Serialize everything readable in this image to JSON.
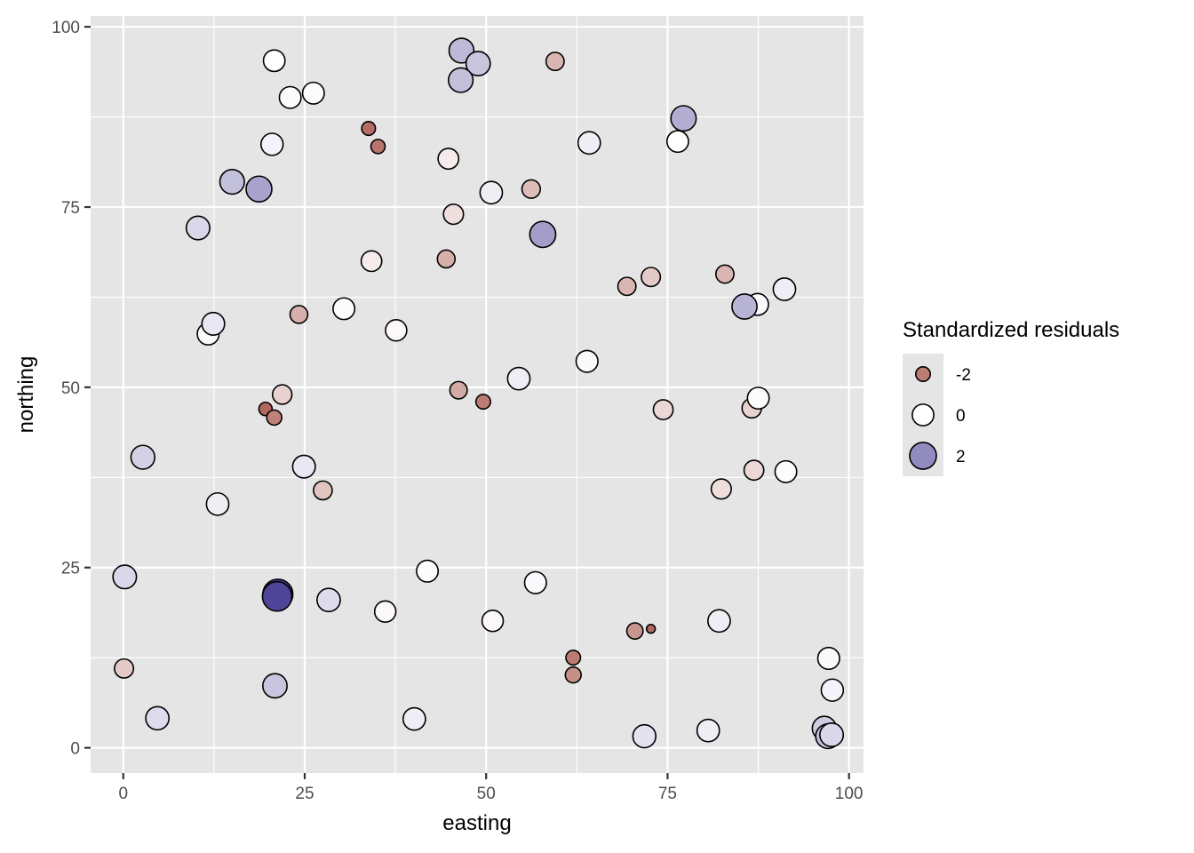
{
  "chart_data": {
    "type": "scatter",
    "xlabel": "easting",
    "ylabel": "northing",
    "xlim": [
      -4.5,
      102
    ],
    "ylim": [
      -3.5,
      101.5
    ],
    "x_ticks": [
      0,
      25,
      50,
      75,
      100
    ],
    "y_ticks": [
      0,
      25,
      50,
      75,
      100
    ],
    "x_tick_labels": [
      "0",
      "25",
      "50",
      "75",
      "100"
    ],
    "y_tick_labels": [
      "0",
      "25",
      "50",
      "75",
      "100"
    ],
    "grid": true,
    "panel_background": "#e5e5e5",
    "grid_color": "#ffffff",
    "legend": {
      "title": "Standardized residuals",
      "placement": "right",
      "entries": [
        {
          "label": "-2",
          "value": -2
        },
        {
          "label": "0",
          "value": 0
        },
        {
          "label": "2",
          "value": 2
        }
      ]
    },
    "color_scale": {
      "type": "diverging",
      "low": "#b2675e",
      "mid": "#ffffff",
      "high": "#3f358f",
      "midpoint": 0,
      "limits": [
        -3.2,
        3.6
      ]
    },
    "points": [
      {
        "x": 20.8,
        "y": 95.3,
        "residual": 0.0
      },
      {
        "x": 23.0,
        "y": 90.2,
        "residual": 0.05
      },
      {
        "x": 26.2,
        "y": 90.8,
        "residual": 0.05
      },
      {
        "x": 46.6,
        "y": 96.7,
        "residual": 1.2
      },
      {
        "x": 48.9,
        "y": 94.9,
        "residual": 1.0
      },
      {
        "x": 46.5,
        "y": 92.6,
        "residual": 1.1
      },
      {
        "x": 59.5,
        "y": 95.2,
        "residual": -1.1
      },
      {
        "x": 33.8,
        "y": 85.9,
        "residual": -2.2
      },
      {
        "x": 35.1,
        "y": 83.4,
        "residual": -2.1
      },
      {
        "x": 20.5,
        "y": 83.7,
        "residual": 0.2
      },
      {
        "x": 44.8,
        "y": 81.7,
        "residual": -0.3
      },
      {
        "x": 64.2,
        "y": 83.9,
        "residual": 0.3
      },
      {
        "x": 76.4,
        "y": 84.1,
        "residual": 0.0
      },
      {
        "x": 77.2,
        "y": 87.3,
        "residual": 1.4
      },
      {
        "x": 15.0,
        "y": 78.5,
        "residual": 1.1
      },
      {
        "x": 18.7,
        "y": 77.5,
        "residual": 1.6
      },
      {
        "x": 50.7,
        "y": 77.0,
        "residual": 0.3
      },
      {
        "x": 56.2,
        "y": 77.5,
        "residual": -1.0
      },
      {
        "x": 45.5,
        "y": 74.0,
        "residual": -0.5
      },
      {
        "x": 10.3,
        "y": 72.1,
        "residual": 0.7
      },
      {
        "x": 57.8,
        "y": 71.2,
        "residual": 1.7
      },
      {
        "x": 34.2,
        "y": 67.5,
        "residual": -0.3
      },
      {
        "x": 44.5,
        "y": 67.8,
        "residual": -1.2
      },
      {
        "x": 69.4,
        "y": 64.0,
        "residual": -1.1
      },
      {
        "x": 72.7,
        "y": 65.3,
        "residual": -0.8
      },
      {
        "x": 82.9,
        "y": 65.7,
        "residual": -1.1
      },
      {
        "x": 91.1,
        "y": 63.6,
        "residual": 0.3
      },
      {
        "x": 87.4,
        "y": 61.5,
        "residual": 0.1
      },
      {
        "x": 85.6,
        "y": 61.2,
        "residual": 1.3
      },
      {
        "x": 24.2,
        "y": 60.1,
        "residual": -1.2
      },
      {
        "x": 30.4,
        "y": 60.9,
        "residual": 0.05
      },
      {
        "x": 37.6,
        "y": 57.9,
        "residual": -0.1
      },
      {
        "x": 11.7,
        "y": 57.4,
        "residual": 0.1
      },
      {
        "x": 12.4,
        "y": 58.8,
        "residual": 0.4
      },
      {
        "x": 63.9,
        "y": 53.6,
        "residual": 0.1
      },
      {
        "x": 54.5,
        "y": 51.2,
        "residual": 0.3
      },
      {
        "x": 21.9,
        "y": 49.0,
        "residual": -0.7
      },
      {
        "x": 46.2,
        "y": 49.6,
        "residual": -1.3
      },
      {
        "x": 49.6,
        "y": 48.0,
        "residual": -2.0
      },
      {
        "x": 19.6,
        "y": 47.0,
        "residual": -2.3
      },
      {
        "x": 20.8,
        "y": 45.8,
        "residual": -1.9
      },
      {
        "x": 74.4,
        "y": 46.9,
        "residual": -0.6
      },
      {
        "x": 86.6,
        "y": 47.1,
        "residual": -0.7
      },
      {
        "x": 87.5,
        "y": 48.5,
        "residual": 0.05
      },
      {
        "x": 2.7,
        "y": 40.3,
        "residual": 0.8
      },
      {
        "x": 24.9,
        "y": 39.0,
        "residual": 0.4
      },
      {
        "x": 27.5,
        "y": 35.7,
        "residual": -0.9
      },
      {
        "x": 86.9,
        "y": 38.5,
        "residual": -0.6
      },
      {
        "x": 91.3,
        "y": 38.3,
        "residual": 0.05
      },
      {
        "x": 82.4,
        "y": 35.9,
        "residual": -0.5
      },
      {
        "x": 13.0,
        "y": 33.8,
        "residual": 0.3
      },
      {
        "x": 0.2,
        "y": 23.7,
        "residual": 0.7
      },
      {
        "x": 41.9,
        "y": 24.5,
        "residual": 0.05
      },
      {
        "x": 56.8,
        "y": 22.9,
        "residual": 0.1
      },
      {
        "x": 21.3,
        "y": 21.3,
        "residual": 3.5
      },
      {
        "x": 21.2,
        "y": 21.0,
        "residual": 3.2
      },
      {
        "x": 28.3,
        "y": 20.5,
        "residual": 0.6
      },
      {
        "x": 36.1,
        "y": 18.9,
        "residual": -0.1
      },
      {
        "x": 50.9,
        "y": 17.6,
        "residual": -0.1
      },
      {
        "x": 82.1,
        "y": 17.6,
        "residual": 0.3
      },
      {
        "x": 70.5,
        "y": 16.2,
        "residual": -1.6
      },
      {
        "x": 72.7,
        "y": 16.5,
        "residual": -3.1
      },
      {
        "x": 62.0,
        "y": 12.5,
        "residual": -2.0
      },
      {
        "x": 62.0,
        "y": 10.1,
        "residual": -1.7
      },
      {
        "x": 0.1,
        "y": 11.0,
        "residual": -0.8
      },
      {
        "x": 97.2,
        "y": 12.4,
        "residual": 0.1
      },
      {
        "x": 97.7,
        "y": 8.0,
        "residual": 0.2
      },
      {
        "x": 20.9,
        "y": 8.6,
        "residual": 1.0
      },
      {
        "x": 4.7,
        "y": 4.1,
        "residual": 0.6
      },
      {
        "x": 40.1,
        "y": 4.0,
        "residual": 0.3
      },
      {
        "x": 71.8,
        "y": 1.6,
        "residual": 0.5
      },
      {
        "x": 80.6,
        "y": 2.4,
        "residual": 0.3
      },
      {
        "x": 96.6,
        "y": 2.7,
        "residual": 0.9
      },
      {
        "x": 97.1,
        "y": 1.6,
        "residual": 1.1
      },
      {
        "x": 97.6,
        "y": 1.8,
        "residual": 0.7
      }
    ]
  }
}
